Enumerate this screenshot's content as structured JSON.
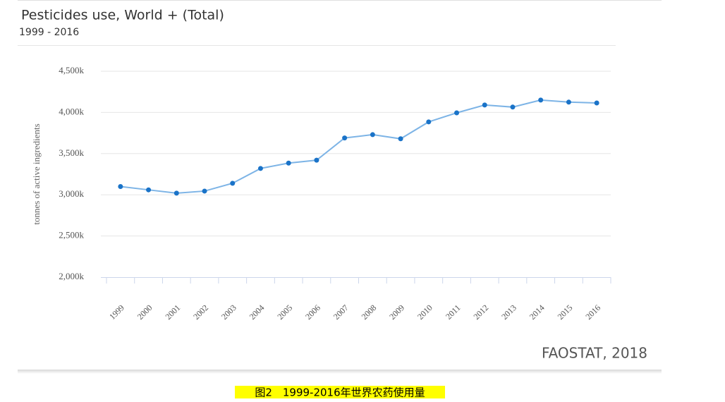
{
  "chart_data": {
    "type": "line",
    "title": "Pesticides use, World + (Total)",
    "subtitle": "1999 - 2016",
    "y_label": "tonnes of active ingredients",
    "source": "FAOSTAT, 2018",
    "categories": [
      "1999",
      "2000",
      "2001",
      "2002",
      "2003",
      "2004",
      "2005",
      "2006",
      "2007",
      "2008",
      "2009",
      "2010",
      "2011",
      "2012",
      "2013",
      "2014",
      "2015",
      "2016"
    ],
    "values": [
      3100000,
      3060000,
      3020000,
      3045000,
      3140000,
      3320000,
      3385000,
      3420000,
      3690000,
      3730000,
      3680000,
      3885000,
      3995000,
      4090000,
      4065000,
      4150000,
      4125000,
      4115000
    ],
    "color": "#1a73c8",
    "line_color": "#7db4e6",
    "ylim": [
      2000000,
      4500000
    ],
    "yticks": [
      {
        "value": 2000000,
        "label": "2,000k"
      },
      {
        "value": 2500000,
        "label": "2,500k"
      },
      {
        "value": 3000000,
        "label": "3,000k"
      },
      {
        "value": 3500000,
        "label": "3,500k"
      },
      {
        "value": 4000000,
        "label": "4,000k"
      },
      {
        "value": 4500000,
        "label": "4,500k"
      }
    ],
    "grid": true
  },
  "caption": "图2　1999-2016年世界农药使用量"
}
